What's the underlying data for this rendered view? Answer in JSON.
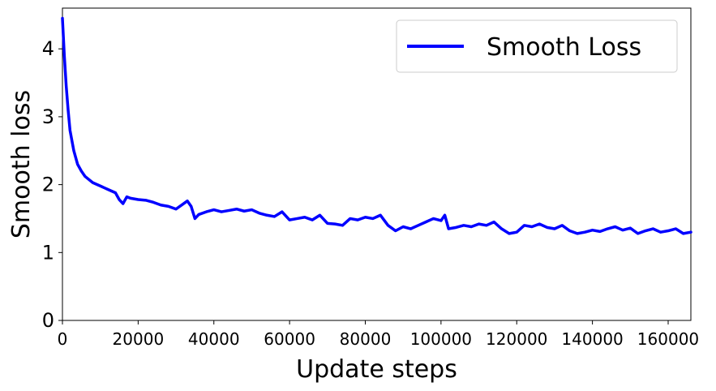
{
  "chart_data": {
    "type": "line",
    "xlabel": "Update steps",
    "ylabel": "Smooth loss",
    "xlim": [
      0,
      166000
    ],
    "ylim": [
      0,
      4.6
    ],
    "xticks": [
      0,
      20000,
      40000,
      60000,
      80000,
      100000,
      120000,
      140000,
      160000
    ],
    "yticks": [
      0,
      1,
      2,
      3,
      4
    ],
    "grid": false,
    "legend_position": "top-right",
    "series": [
      {
        "name": "Smooth Loss",
        "color": "#0000ff",
        "x": [
          0,
          500,
          1000,
          1500,
          2000,
          3000,
          4000,
          5000,
          6000,
          8000,
          10000,
          12000,
          14000,
          15000,
          16000,
          17000,
          18000,
          20000,
          22000,
          24000,
          26000,
          28000,
          30000,
          32000,
          33000,
          34000,
          35000,
          36000,
          38000,
          40000,
          42000,
          44000,
          46000,
          48000,
          50000,
          52000,
          54000,
          56000,
          58000,
          60000,
          62000,
          64000,
          66000,
          68000,
          70000,
          72000,
          74000,
          76000,
          78000,
          80000,
          82000,
          84000,
          86000,
          88000,
          90000,
          92000,
          94000,
          96000,
          98000,
          100000,
          101000,
          102000,
          104000,
          106000,
          108000,
          110000,
          112000,
          114000,
          116000,
          118000,
          120000,
          122000,
          124000,
          126000,
          128000,
          130000,
          132000,
          134000,
          136000,
          138000,
          140000,
          142000,
          144000,
          146000,
          148000,
          150000,
          152000,
          154000,
          156000,
          158000,
          160000,
          162000,
          164000,
          166000
        ],
        "y": [
          4.45,
          3.9,
          3.45,
          3.1,
          2.8,
          2.5,
          2.3,
          2.2,
          2.12,
          2.03,
          1.98,
          1.93,
          1.88,
          1.78,
          1.72,
          1.82,
          1.8,
          1.78,
          1.77,
          1.74,
          1.7,
          1.68,
          1.64,
          1.72,
          1.76,
          1.68,
          1.5,
          1.56,
          1.6,
          1.63,
          1.6,
          1.62,
          1.64,
          1.61,
          1.63,
          1.58,
          1.55,
          1.53,
          1.6,
          1.48,
          1.5,
          1.52,
          1.48,
          1.55,
          1.43,
          1.42,
          1.4,
          1.5,
          1.48,
          1.52,
          1.5,
          1.55,
          1.4,
          1.32,
          1.38,
          1.35,
          1.4,
          1.45,
          1.5,
          1.47,
          1.55,
          1.35,
          1.37,
          1.4,
          1.38,
          1.42,
          1.4,
          1.45,
          1.35,
          1.28,
          1.3,
          1.4,
          1.38,
          1.42,
          1.37,
          1.35,
          1.4,
          1.32,
          1.28,
          1.3,
          1.33,
          1.31,
          1.35,
          1.38,
          1.33,
          1.36,
          1.28,
          1.32,
          1.35,
          1.3,
          1.32,
          1.35,
          1.28,
          1.3
        ]
      }
    ]
  }
}
